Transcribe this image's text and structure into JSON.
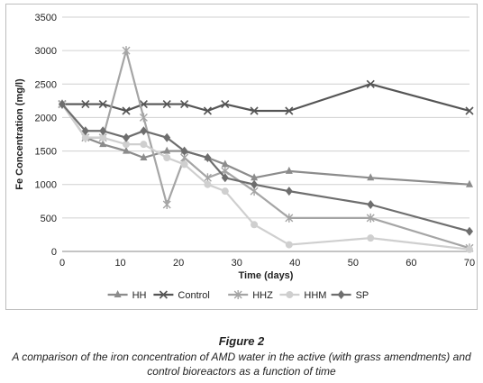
{
  "chart_data": {
    "type": "line",
    "title": "",
    "xlabel": "Time (days)",
    "ylabel": "Fe Concentration (mg/l)",
    "xlim": [
      0,
      70
    ],
    "ylim": [
      0,
      3500
    ],
    "xticks": [
      0,
      10,
      20,
      30,
      40,
      50,
      60,
      70
    ],
    "yticks": [
      0,
      500,
      1000,
      1500,
      2000,
      2500,
      3000,
      3500
    ],
    "grid": "horizontal",
    "legend_position": "bottom",
    "series": [
      {
        "name": "HH",
        "color": "#8c8c8c",
        "marker": "triangle",
        "points": [
          [
            0,
            2200
          ],
          [
            4,
            1700
          ],
          [
            7,
            1600
          ],
          [
            11,
            1500
          ],
          [
            14,
            1400
          ],
          [
            18,
            1500
          ],
          [
            21,
            1500
          ],
          [
            25,
            1400
          ],
          [
            28,
            1300
          ],
          [
            33,
            1100
          ],
          [
            39,
            1200
          ],
          [
            53,
            1100
          ],
          [
            70,
            1000
          ]
        ]
      },
      {
        "name": "Control",
        "color": "#555555",
        "marker": "x",
        "points": [
          [
            0,
            2200
          ],
          [
            4,
            2200
          ],
          [
            7,
            2200
          ],
          [
            11,
            2100
          ],
          [
            14,
            2200
          ],
          [
            18,
            2200
          ],
          [
            21,
            2200
          ],
          [
            25,
            2100
          ],
          [
            28,
            2200
          ],
          [
            33,
            2100
          ],
          [
            39,
            2100
          ],
          [
            53,
            2500
          ],
          [
            70,
            2100
          ]
        ]
      },
      {
        "name": "HHZ",
        "color": "#a5a5a5",
        "marker": "star",
        "points": [
          [
            0,
            2200
          ],
          [
            4,
            1700
          ],
          [
            7,
            1700
          ],
          [
            11,
            3000
          ],
          [
            14,
            2000
          ],
          [
            18,
            700
          ],
          [
            21,
            1400
          ],
          [
            25,
            1100
          ],
          [
            28,
            1200
          ],
          [
            33,
            900
          ],
          [
            39,
            500
          ],
          [
            53,
            500
          ],
          [
            70,
            50
          ]
        ]
      },
      {
        "name": "HHM",
        "color": "#cfcfcf",
        "marker": "circle",
        "points": [
          [
            0,
            2200
          ],
          [
            4,
            1700
          ],
          [
            7,
            1700
          ],
          [
            11,
            1600
          ],
          [
            14,
            1600
          ],
          [
            18,
            1400
          ],
          [
            21,
            1300
          ],
          [
            25,
            1000
          ],
          [
            28,
            900
          ],
          [
            33,
            400
          ],
          [
            39,
            100
          ],
          [
            53,
            200
          ],
          [
            70,
            30
          ]
        ]
      },
      {
        "name": "SP",
        "color": "#6e6e6e",
        "marker": "diamond",
        "points": [
          [
            0,
            2200
          ],
          [
            4,
            1800
          ],
          [
            7,
            1800
          ],
          [
            11,
            1700
          ],
          [
            14,
            1800
          ],
          [
            18,
            1700
          ],
          [
            21,
            1500
          ],
          [
            25,
            1400
          ],
          [
            28,
            1100
          ],
          [
            33,
            1000
          ],
          [
            39,
            900
          ],
          [
            53,
            700
          ],
          [
            70,
            300
          ]
        ]
      }
    ]
  },
  "caption": {
    "title": "Figure 2",
    "text": "A comparison of the iron concentration of AMD water in the active (with grass amendments) and control bioreactors as a function of time"
  }
}
